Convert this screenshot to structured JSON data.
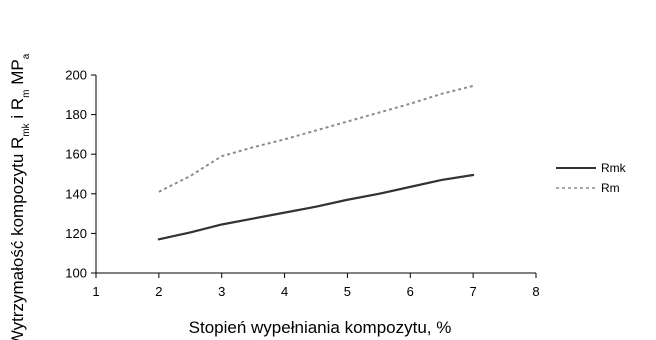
{
  "chart_data": {
    "type": "line",
    "xlabel": "Stopień wypełniania kompozytu, %",
    "ylabel": {
      "parts": [
        {
          "text": "Wytrzymałość kompozytu R",
          "sub": false
        },
        {
          "text": "mk",
          "sub": true
        },
        {
          "text": " i R",
          "sub": false
        },
        {
          "text": "m",
          "sub": true
        },
        {
          "text": " MP",
          "sub": false
        },
        {
          "text": "a",
          "sub": true
        }
      ]
    },
    "xlim": [
      1,
      8
    ],
    "ylim": [
      100,
      200
    ],
    "x_ticks": [
      1,
      2,
      3,
      4,
      5,
      6,
      7,
      8
    ],
    "y_ticks": [
      100,
      120,
      140,
      160,
      180,
      200
    ],
    "grid": false,
    "legend_position": "right",
    "series": [
      {
        "name": "Rmk",
        "style": "solid",
        "color": "#333333",
        "x": [
          2,
          2.5,
          3,
          3.5,
          4,
          4.5,
          5,
          5.5,
          6,
          6.5,
          7
        ],
        "y": [
          117,
          120.5,
          124.5,
          127.5,
          130.5,
          133.5,
          137,
          140,
          143.5,
          147,
          149.5
        ]
      },
      {
        "name": "Rm",
        "style": "dashed",
        "color": "#8c8c8c",
        "x": [
          2,
          2.5,
          3,
          3.5,
          4,
          4.5,
          5,
          5.5,
          6,
          6.5,
          7
        ],
        "y": [
          141,
          149,
          159,
          163.5,
          167.5,
          172,
          176.5,
          181,
          185.5,
          190.5,
          194.5
        ]
      }
    ]
  }
}
